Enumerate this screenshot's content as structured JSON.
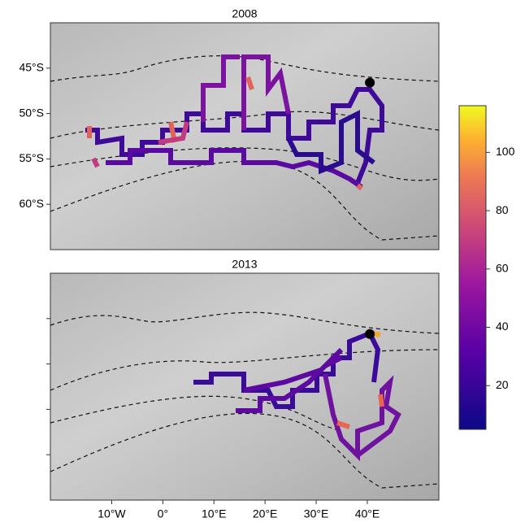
{
  "chart_data": {
    "type": "map",
    "xlim": [
      -22,
      54
    ],
    "ylim": [
      -65,
      -40
    ],
    "xticks": [
      {
        "value": -10,
        "label": "10°W"
      },
      {
        "value": 0,
        "label": "0°"
      },
      {
        "value": 10,
        "label": "10°E"
      },
      {
        "value": 20,
        "label": "20°E"
      },
      {
        "value": 30,
        "label": "30°E"
      },
      {
        "value": 40,
        "label": "40°E"
      }
    ],
    "yticks": [
      {
        "value": -45,
        "label": "45°S"
      },
      {
        "value": -50,
        "label": "50°S"
      },
      {
        "value": -55,
        "label": "55°S"
      },
      {
        "value": -60,
        "label": "60°S"
      }
    ],
    "panels": [
      {
        "title": "2008",
        "colony": [
          40.5,
          -46.6
        ]
      },
      {
        "title": "2013",
        "colony": [
          40.5,
          -46.7
        ]
      }
    ],
    "colorbar": {
      "lim": [
        5,
        116
      ],
      "ticks": [
        20,
        40,
        60,
        80,
        100
      ]
    }
  }
}
